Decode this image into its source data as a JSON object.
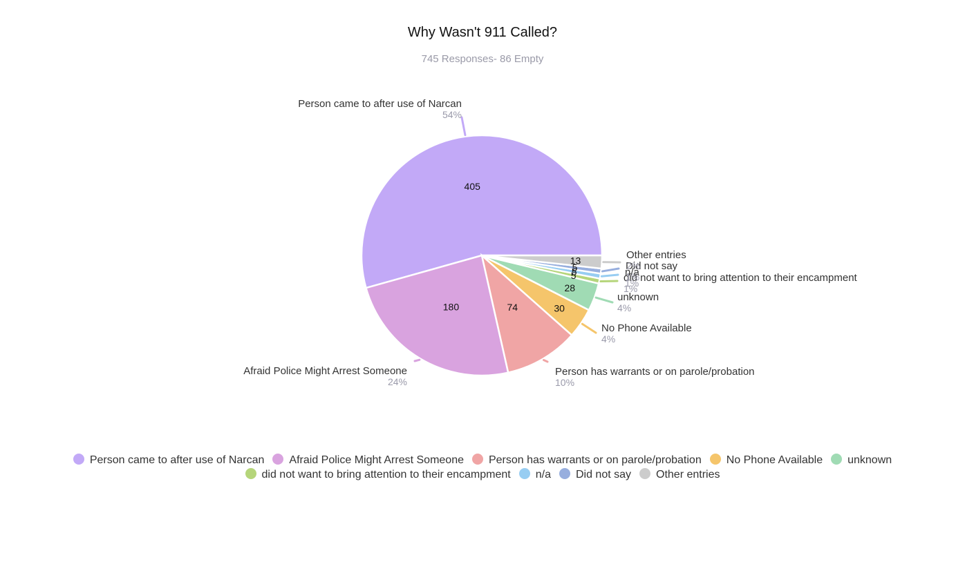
{
  "title": "Why Wasn't 911 Called?",
  "subtitle": "745 Responses- 86 Empty",
  "chart_data": {
    "type": "pie",
    "title": "Why Wasn't 911 Called?",
    "subtitle": "745 Responses- 86 Empty",
    "legend_position": "bottom",
    "slices": [
      {
        "label": "Person came to after use of Narcan",
        "value": 405,
        "percent": "54%",
        "color": "#c2a9f7"
      },
      {
        "label": "Afraid Police Might Arrest Someone",
        "value": 180,
        "percent": "24%",
        "color": "#d9a3df"
      },
      {
        "label": "Person has warrants or on parole/probation",
        "value": 74,
        "percent": "10%",
        "color": "#f0a5a5"
      },
      {
        "label": "No Phone Available",
        "value": 30,
        "percent": "4%",
        "color": "#f5c56b"
      },
      {
        "label": "unknown",
        "value": 28,
        "percent": "4%",
        "color": "#a0dbb4"
      },
      {
        "label": "did not want to bring attention to their encampment",
        "value": 5,
        "percent": "1%",
        "color": "#b5d57a"
      },
      {
        "label": "n/a",
        "value": 5,
        "percent": "1%",
        "color": "#97cdf2"
      },
      {
        "label": "Did not say",
        "value": 5,
        "percent": "1%",
        "color": "#97aede"
      },
      {
        "label": "Other entries",
        "value": 13,
        "percent": "2%",
        "color": "#cccccc"
      }
    ]
  }
}
